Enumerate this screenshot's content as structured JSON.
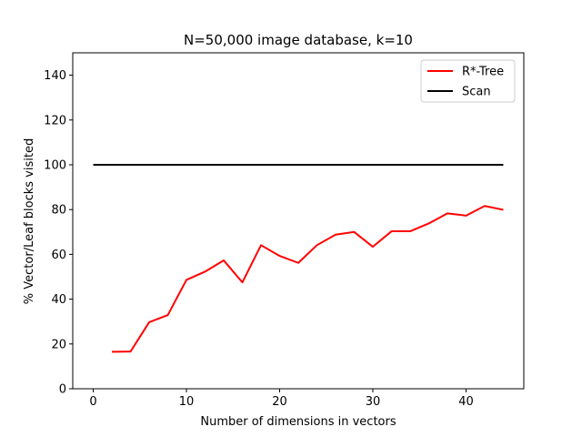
{
  "chart_data": {
    "type": "line",
    "title": "N=50,000 image database, k=10",
    "xlabel": "Number of dimensions in vectors",
    "ylabel": "% Vector/Leaf blocks visited",
    "xlim": [
      -2.2,
      46.2
    ],
    "ylim": [
      0,
      150
    ],
    "xticks": [
      0,
      10,
      20,
      30,
      40
    ],
    "yticks": [
      0,
      20,
      40,
      60,
      80,
      100,
      120,
      140
    ],
    "grid": false,
    "legend_position": "top-right",
    "series": [
      {
        "name": "R*-Tree",
        "color": "#ff0000",
        "x": [
          2,
          4,
          6,
          8,
          10,
          12,
          14,
          16,
          18,
          20,
          22,
          24,
          26,
          28,
          30,
          32,
          34,
          36,
          38,
          40,
          42,
          44
        ],
        "y": [
          16.5,
          16.6,
          29.7,
          32.9,
          48.6,
          52.3,
          57.3,
          47.5,
          64.1,
          59.3,
          56.2,
          64.1,
          68.8,
          70.0,
          63.4,
          70.3,
          70.3,
          73.8,
          78.3,
          77.3,
          81.6,
          79.9
        ]
      },
      {
        "name": "Scan",
        "color": "#000000",
        "x": [
          0,
          44
        ],
        "y": [
          100,
          100
        ]
      }
    ]
  }
}
